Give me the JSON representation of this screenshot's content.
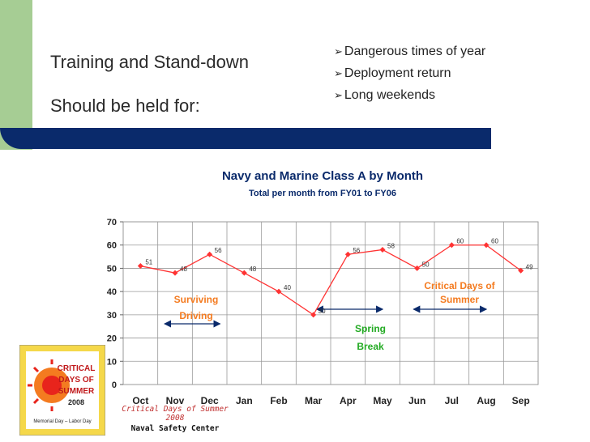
{
  "slide": {
    "title_line1": "Training and Stand-down",
    "title_line2": "Should be held for:",
    "bullets": [
      "Dangerous times of year",
      "Deployment return",
      "Long weekends"
    ],
    "bullet_arrow": "➢"
  },
  "chart_data": {
    "type": "line",
    "title": "Navy and Marine Class A by Month",
    "subtitle": "Total per month from FY01 to FY06",
    "categories": [
      "Oct",
      "Nov",
      "Dec",
      "Jan",
      "Feb",
      "Mar",
      "Apr",
      "May",
      "Jun",
      "Jul",
      "Aug",
      "Sep"
    ],
    "values": [
      51,
      48,
      56,
      48,
      40,
      30,
      56,
      58,
      50,
      60,
      60,
      49
    ],
    "ylim": [
      0,
      70
    ],
    "yticks": [
      0,
      10,
      20,
      30,
      40,
      50,
      60,
      70
    ],
    "grid": true,
    "line_color": "#ff3333",
    "annotations": [
      {
        "label_lines": [
          "Surviving",
          "Driving"
        ],
        "color": "#f47b20",
        "span": [
          "Nov",
          "Dec"
        ]
      },
      {
        "label_lines": [
          "Spring",
          "Break"
        ],
        "color": "#22aa22",
        "span": [
          "Mar",
          "May"
        ]
      },
      {
        "label_lines": [
          "Critical Days of",
          "Summer"
        ],
        "color": "#f47b20",
        "span": [
          "Jun",
          "Aug"
        ]
      }
    ]
  },
  "footer": {
    "caption1": "Critical Days of Summer 2008",
    "caption2": "Naval Safety Center",
    "logo_text": [
      "CRITICAL",
      "DAYS OF",
      "SUMMER",
      "2008",
      "Memorial Day – Labor Day"
    ]
  },
  "colors": {
    "accent_green": "#a6cd94",
    "banner": "#0a2a6b",
    "orange": "#f47b20",
    "green": "#22aa22",
    "red": "#ff3333"
  }
}
